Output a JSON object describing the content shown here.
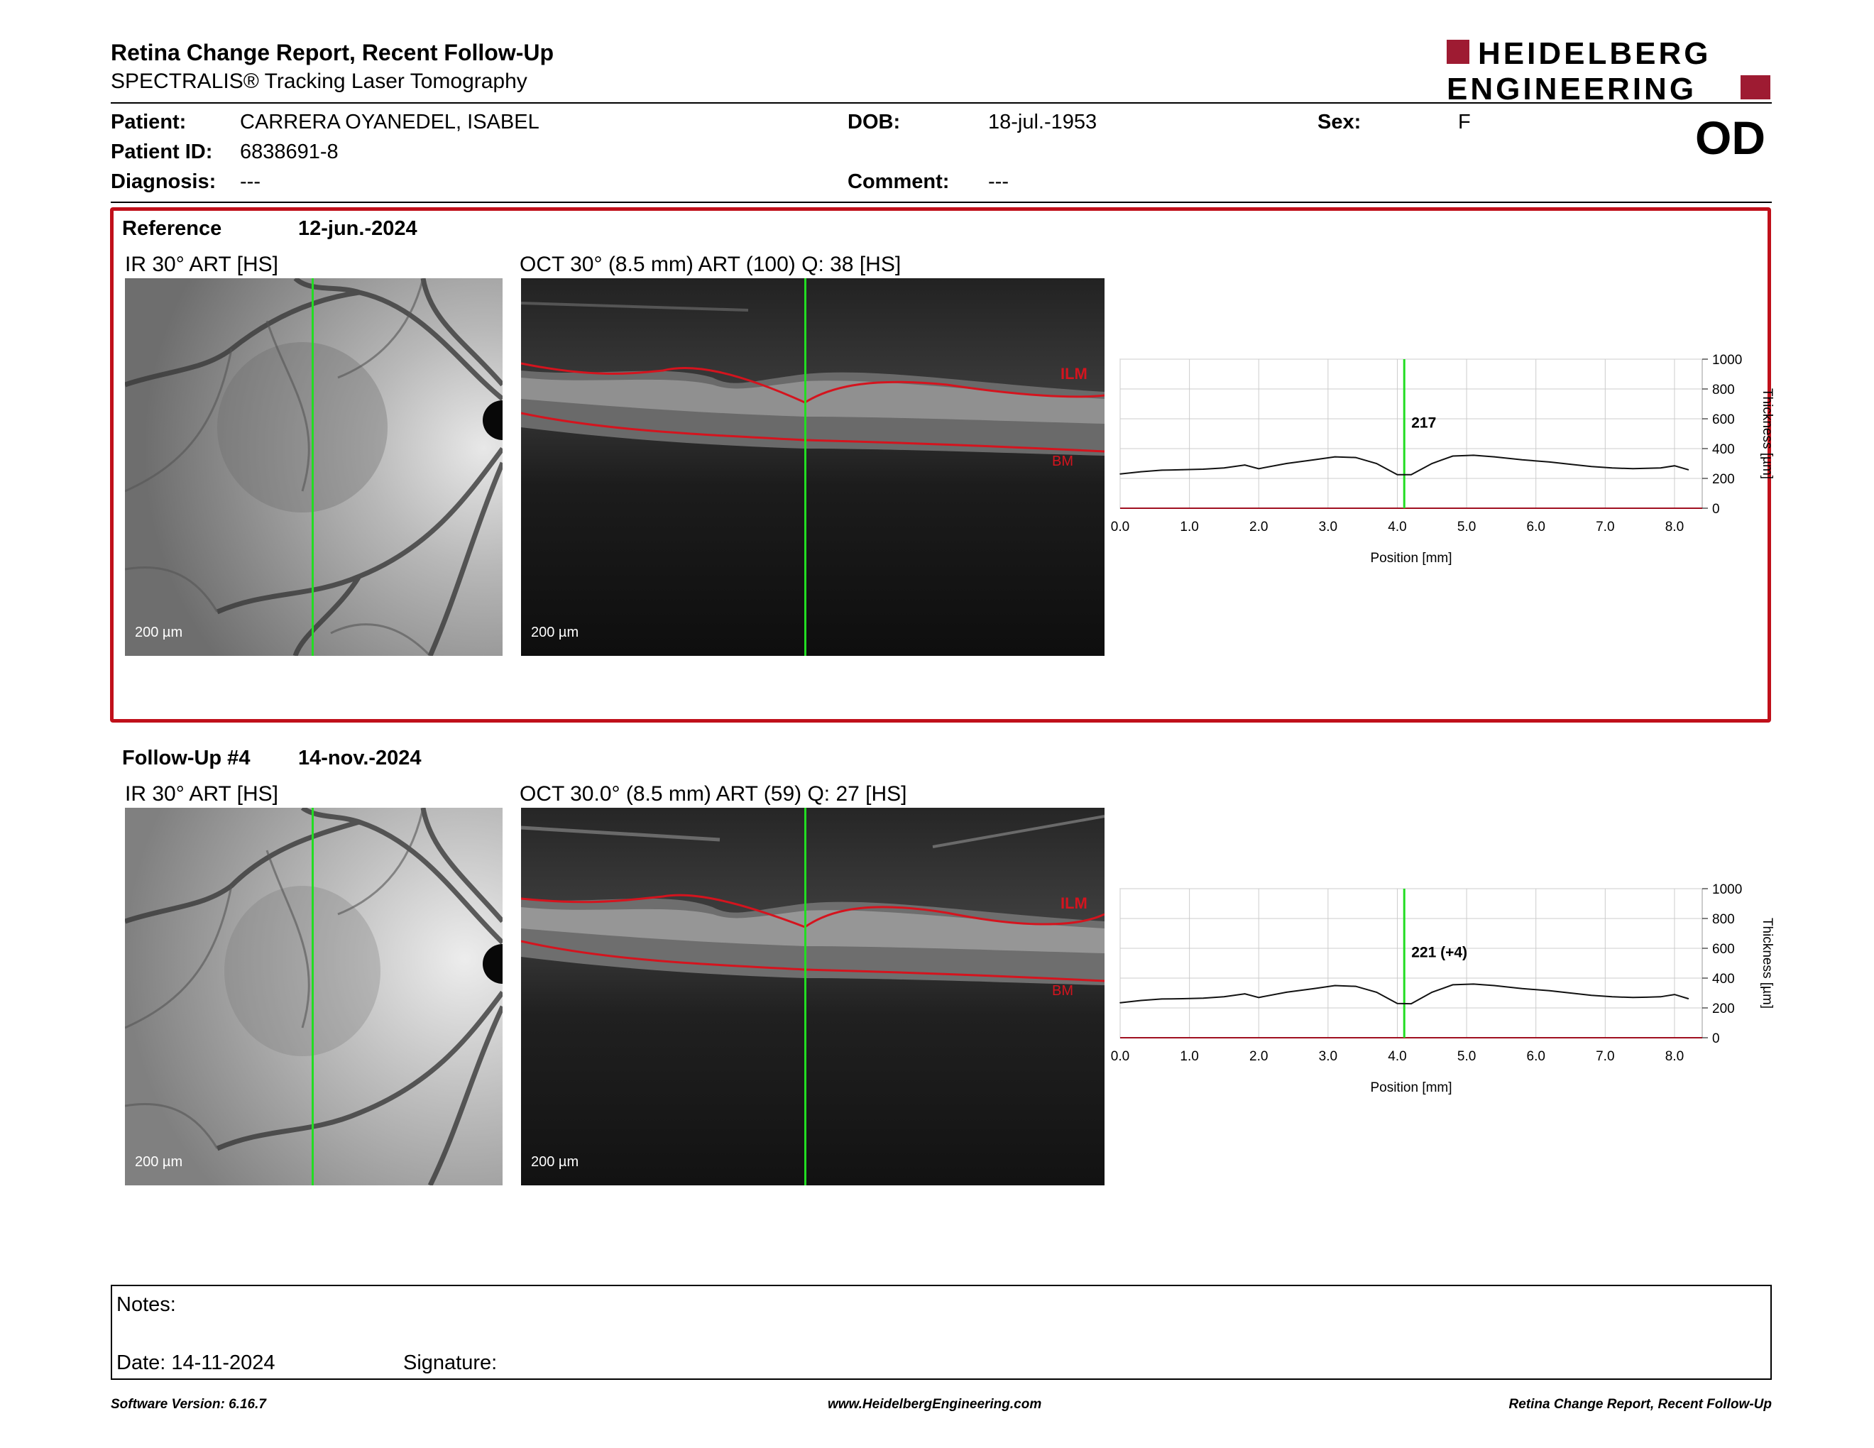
{
  "header": {
    "title": "Retina Change Report, Recent Follow-Up",
    "subtitle": "SPECTRALIS® Tracking Laser Tomography",
    "logo_line1": "HEIDELBERG",
    "logo_line2": "ENGINEERING",
    "eye": "OD"
  },
  "patient": {
    "patient_label": "Patient:",
    "patient_value": "CARRERA OYANEDEL, ISABEL",
    "id_label": "Patient ID:",
    "id_value": "6838691-8",
    "diagnosis_label": "Diagnosis:",
    "diagnosis_value": "---",
    "dob_label": "DOB:",
    "dob_value": "18-jul.-1953",
    "comment_label": "Comment:",
    "comment_value": "---",
    "sex_label": "Sex:",
    "sex_value": "F"
  },
  "reference": {
    "label": "Reference",
    "date": "12-jun.-2024",
    "ir_title": "IR 30° ART [HS]",
    "oct_title": "OCT 30° (8.5 mm) ART (100) Q: 38 [HS]",
    "scale": "200 µm",
    "ilm": "ILM",
    "bm": "BM"
  },
  "followup": {
    "label": "Follow-Up #4",
    "date": "14-nov.-2024",
    "ir_title": "IR 30° ART [HS]",
    "oct_title": "OCT 30.0° (8.5 mm) ART (59) Q: 27 [HS]",
    "scale": "200 µm",
    "ilm": "ILM",
    "bm": "BM"
  },
  "chart_data": [
    {
      "type": "line",
      "series": [
        {
          "values_y": [
            230,
            245,
            255,
            258,
            262,
            270,
            290,
            265,
            300,
            325,
            345,
            340,
            300,
            225,
            225,
            300,
            350,
            355,
            345,
            325,
            310,
            295,
            280,
            270,
            265,
            268,
            270,
            285,
            258
          ]
        }
      ],
      "x": [
        0.0,
        0.3,
        0.6,
        0.9,
        1.2,
        1.5,
        1.8,
        2.0,
        2.4,
        2.8,
        3.1,
        3.4,
        3.7,
        4.0,
        4.2,
        4.5,
        4.8,
        5.1,
        5.4,
        5.8,
        6.2,
        6.5,
        6.8,
        7.1,
        7.4,
        7.6,
        7.8,
        8.0,
        8.2
      ],
      "annotation": "217",
      "cursor_x": 4.1,
      "xlabel": "Position [mm]",
      "ylabel": "Thickness [µm]",
      "xticks": [
        "0.0",
        "1.0",
        "2.0",
        "3.0",
        "4.0",
        "5.0",
        "6.0",
        "7.0",
        "8.0"
      ],
      "yticks": [
        "0",
        "200",
        "400",
        "600",
        "800",
        "1000"
      ],
      "xlim": [
        0,
        8.4
      ],
      "ylim": [
        0,
        1000
      ],
      "grid": true
    },
    {
      "type": "line",
      "series": [
        {
          "values_y": [
            235,
            250,
            260,
            262,
            265,
            275,
            295,
            270,
            305,
            330,
            350,
            345,
            305,
            230,
            228,
            305,
            355,
            360,
            350,
            330,
            315,
            300,
            285,
            275,
            270,
            272,
            275,
            290,
            262
          ]
        }
      ],
      "x": [
        0.0,
        0.3,
        0.6,
        0.9,
        1.2,
        1.5,
        1.8,
        2.0,
        2.4,
        2.8,
        3.1,
        3.4,
        3.7,
        4.0,
        4.2,
        4.5,
        4.8,
        5.1,
        5.4,
        5.8,
        6.2,
        6.5,
        6.8,
        7.1,
        7.4,
        7.6,
        7.8,
        8.0,
        8.2
      ],
      "annotation": "221 (+4)",
      "cursor_x": 4.1,
      "xlabel": "Position [mm]",
      "ylabel": "Thickness [µm]",
      "xticks": [
        "0.0",
        "1.0",
        "2.0",
        "3.0",
        "4.0",
        "5.0",
        "6.0",
        "7.0",
        "8.0"
      ],
      "yticks": [
        "0",
        "200",
        "400",
        "600",
        "800",
        "1000"
      ],
      "xlim": [
        0,
        8.4
      ],
      "ylim": [
        0,
        1000
      ],
      "grid": true
    }
  ],
  "notes": {
    "notes_label": "Notes:",
    "date_label": "Date: 14-11-2024",
    "signature_label": "Signature:"
  },
  "footer": {
    "left": "Software Version: 6.16.7",
    "center": "www.HeidelbergEngineering.com",
    "right": "Retina Change Report, Recent Follow-Up"
  },
  "colors": {
    "accent_red": "#c0101a",
    "cursor_green": "#22dd22",
    "logo_red": "#9e1b32"
  }
}
